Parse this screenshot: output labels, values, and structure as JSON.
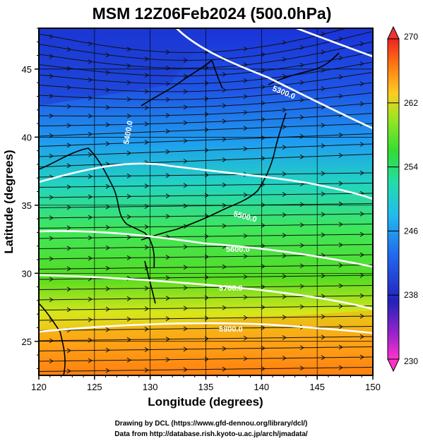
{
  "title": "MSM 12Z06Feb2024 (500.0hPa)",
  "x_axis": {
    "label": "Longitude (degrees)",
    "min": 120,
    "max": 150,
    "ticks": [
      "120",
      "125",
      "130",
      "135",
      "140",
      "145",
      "150"
    ]
  },
  "y_axis": {
    "label": "Latitude  (degrees)",
    "min": 22.5,
    "max": 48,
    "ticks": [
      "25",
      "30",
      "35",
      "40",
      "45"
    ]
  },
  "colorbar": {
    "min": 230,
    "max": 270,
    "labels": [
      "270",
      "262",
      "254",
      "246",
      "238",
      "230"
    ],
    "colors": {
      "low": "#ff44cc",
      "mid_low": "#2233cc",
      "mid": "#22cccc",
      "mid_high": "#33dd22",
      "high": "#ff7700",
      "top": "#ee2222"
    }
  },
  "contour_labels": [
    "5300.0",
    "5400.0",
    "5500.0",
    "5600.0",
    "5700.0",
    "5800.0"
  ],
  "credits": {
    "line1": "Drawing by DCL (https://www.gfd-dennou.org/library/dcl/)",
    "line2": "Data from http://database.rish.kyoto-u.ac.jp/arch/jmadata/"
  },
  "chart_data": {
    "type": "heatmap",
    "title": "MSM 12Z06Feb2024 (500.0hPa)",
    "xlabel": "Longitude (degrees)",
    "ylabel": "Latitude  (degrees)",
    "xlim": [
      120,
      150
    ],
    "ylim": [
      22.5,
      48
    ],
    "colorbar_range": [
      230,
      270
    ],
    "field": "temperature (K), shaded",
    "contours": {
      "field": "geopotential height (m)",
      "levels": [
        5300,
        5400,
        5500,
        5600,
        5700,
        5800
      ]
    },
    "vectors": "wind streamlines, predominantly westerly",
    "grid": true
  }
}
